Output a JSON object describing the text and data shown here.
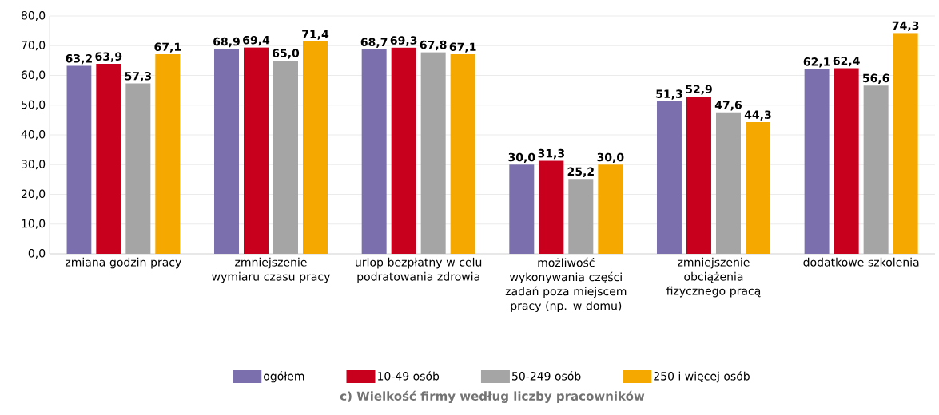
{
  "chart_data": {
    "type": "bar",
    "title": "c) Wielkość firmy według liczby pracowników",
    "categories": [
      "zmiana godzin pracy",
      "zmniejszenie wymiaru czasu pracy",
      "urlop bezpłatny w celu podratowania zdrowia",
      "możliwość wykonywania części zadań poza miejscem pracy (np. w domu)",
      "zmniejszenie obciążenia fizycznego pracą",
      "dodatkowe szkolenia"
    ],
    "series": [
      {
        "name": "ogółem",
        "color": "#7b6fad",
        "values": [
          63.2,
          68.9,
          68.7,
          30.0,
          51.3,
          62.1
        ],
        "value_labels": [
          "63,2",
          "68,9",
          "68,7",
          "30,0",
          "51,3",
          "62,1"
        ]
      },
      {
        "name": "10-49 osób",
        "color": "#c8001e",
        "values": [
          63.9,
          69.4,
          69.3,
          31.3,
          52.9,
          62.4
        ],
        "value_labels": [
          "63,9",
          "69,4",
          "69,3",
          "31,3",
          "52,9",
          "62,4"
        ]
      },
      {
        "name": "50-249 osób",
        "color": "#a5a5a5",
        "values": [
          57.3,
          65.0,
          67.8,
          25.2,
          47.6,
          56.6
        ],
        "value_labels": [
          "57,3",
          "65,0",
          "67,8",
          "25,2",
          "47,6",
          "56,6"
        ]
      },
      {
        "name": "250 i więcej osób",
        "color": "#f5a800",
        "values": [
          67.1,
          71.4,
          67.1,
          30.0,
          44.3,
          74.3
        ],
        "value_labels": [
          "67,1",
          "71,4",
          "67,1",
          "30,0",
          "44,3",
          "74,3"
        ]
      }
    ],
    "ylim": [
      0,
      80
    ],
    "yticks": [
      {
        "value": 0,
        "label": "0,0"
      },
      {
        "value": 10,
        "label": "10,0"
      },
      {
        "value": 20,
        "label": "20,0"
      },
      {
        "value": 30,
        "label": "30,0"
      },
      {
        "value": 40,
        "label": "40,0"
      },
      {
        "value": 50,
        "label": "50,0"
      },
      {
        "value": 60,
        "label": "60,0"
      },
      {
        "value": 70,
        "label": "70,0"
      },
      {
        "value": 80,
        "label": "80,0"
      }
    ],
    "grid": "y",
    "legend": "bottom"
  }
}
